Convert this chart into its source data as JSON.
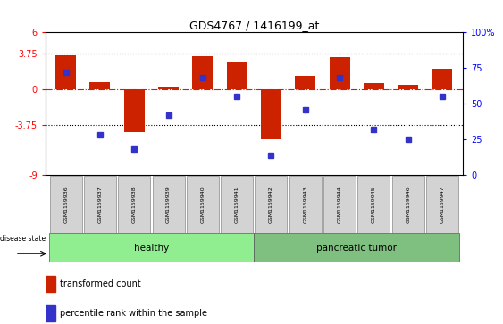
{
  "title": "GDS4767 / 1416199_at",
  "samples": [
    "GSM1159936",
    "GSM1159937",
    "GSM1159938",
    "GSM1159939",
    "GSM1159940",
    "GSM1159941",
    "GSM1159942",
    "GSM1159943",
    "GSM1159944",
    "GSM1159945",
    "GSM1159946",
    "GSM1159947"
  ],
  "transformed_count": [
    3.6,
    0.8,
    -4.5,
    0.3,
    3.5,
    2.8,
    -5.2,
    1.4,
    3.4,
    0.7,
    0.5,
    2.2
  ],
  "percentile_rank": [
    72,
    28,
    18,
    42,
    68,
    55,
    14,
    46,
    68,
    32,
    25,
    55
  ],
  "healthy_count": 6,
  "group_labels": [
    "healthy",
    "pancreatic tumor"
  ],
  "healthy_color": "#90EE90",
  "tumor_color": "#7FBF7F",
  "bar_color_red": "#CC2200",
  "bar_color_blue": "#3333CC",
  "ylim_left": [
    -9,
    6
  ],
  "ylim_right": [
    0,
    100
  ],
  "yticks_left": [
    -9,
    -3.75,
    0,
    3.75,
    6
  ],
  "yticks_right": [
    0,
    25,
    50,
    75,
    100
  ],
  "hlines": [
    3.75,
    -3.75
  ],
  "zero_line_color": "#CC2200",
  "background_color": "#ffffff",
  "disease_state_label": "disease state",
  "legend_entries": [
    "transformed count",
    "percentile rank within the sample"
  ],
  "bar_width": 0.6,
  "figsize": [
    5.63,
    3.63
  ],
  "dpi": 100
}
